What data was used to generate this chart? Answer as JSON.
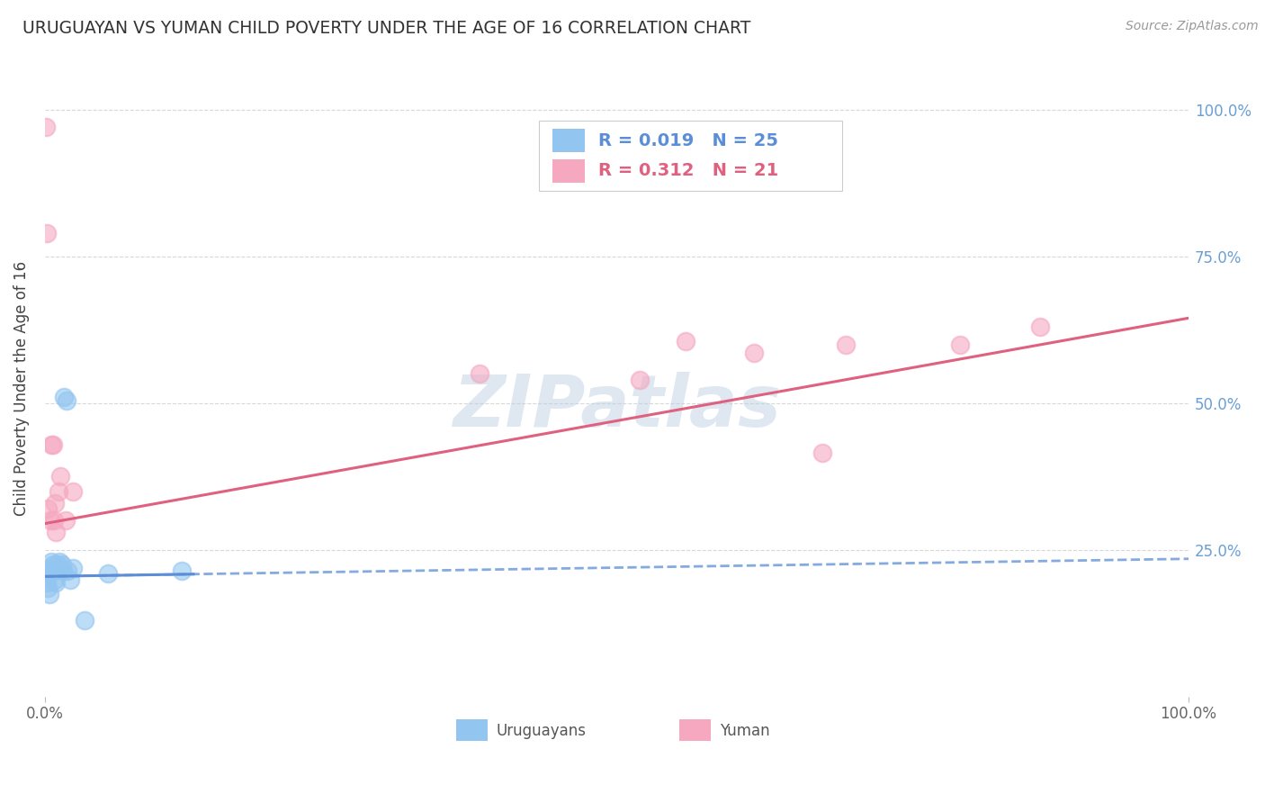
{
  "title": "URUGUAYAN VS YUMAN CHILD POVERTY UNDER THE AGE OF 16 CORRELATION CHART",
  "source": "Source: ZipAtlas.com",
  "ylabel": "Child Poverty Under the Age of 16",
  "ytick_labels": [
    "100.0%",
    "75.0%",
    "50.0%",
    "25.0%"
  ],
  "ytick_values": [
    1.0,
    0.75,
    0.5,
    0.25
  ],
  "legend_uruguayans": "Uruguayans",
  "legend_yuman": "Yuman",
  "R_uruguayans": 0.019,
  "N_uruguayans": 25,
  "R_yuman": 0.312,
  "N_yuman": 21,
  "color_blue": "#92C5F0",
  "color_pink": "#F5A8C0",
  "color_blue_line": "#5B8ED6",
  "color_pink_line": "#E06080",
  "uruguayans_x": [
    0.001,
    0.002,
    0.003,
    0.004,
    0.005,
    0.006,
    0.006,
    0.007,
    0.008,
    0.009,
    0.01,
    0.011,
    0.012,
    0.013,
    0.014,
    0.015,
    0.016,
    0.017,
    0.019,
    0.02,
    0.022,
    0.025,
    0.035,
    0.055,
    0.12
  ],
  "uruguayans_y": [
    0.205,
    0.195,
    0.185,
    0.175,
    0.22,
    0.215,
    0.23,
    0.225,
    0.215,
    0.2,
    0.195,
    0.225,
    0.22,
    0.23,
    0.22,
    0.225,
    0.215,
    0.51,
    0.505,
    0.215,
    0.2,
    0.22,
    0.13,
    0.21,
    0.215
  ],
  "yuman_x": [
    0.001,
    0.002,
    0.003,
    0.005,
    0.006,
    0.007,
    0.008,
    0.009,
    0.01,
    0.012,
    0.014,
    0.018,
    0.025,
    0.38,
    0.52,
    0.56,
    0.62,
    0.68,
    0.7,
    0.8,
    0.87
  ],
  "yuman_y": [
    0.97,
    0.79,
    0.32,
    0.3,
    0.43,
    0.43,
    0.3,
    0.33,
    0.28,
    0.35,
    0.375,
    0.3,
    0.35,
    0.55,
    0.54,
    0.605,
    0.585,
    0.415,
    0.6,
    0.6,
    0.63
  ],
  "watermark": "ZIPatlas",
  "background_color": "#FFFFFF",
  "grid_color": "#D8D8D8"
}
